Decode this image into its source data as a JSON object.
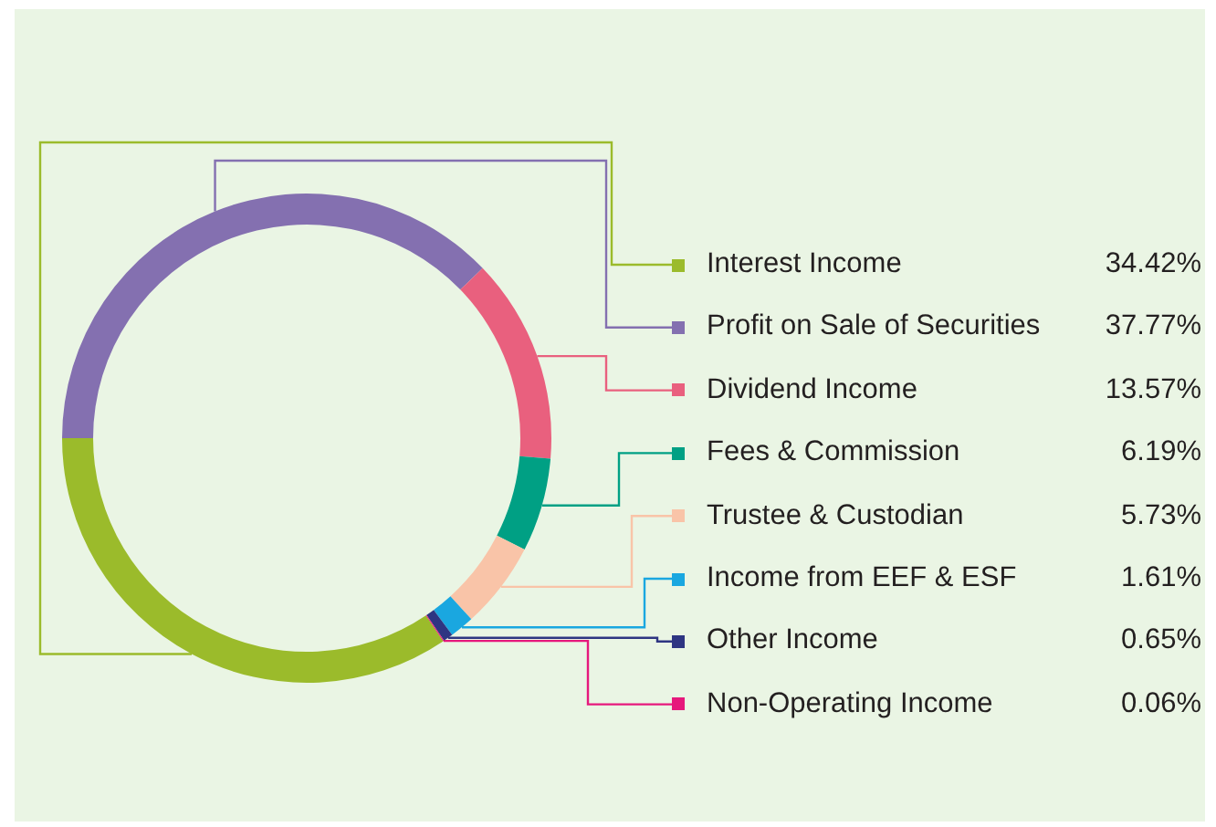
{
  "chart_data": {
    "type": "donut",
    "categories": [
      "Interest Income",
      "Profit on Sale of Securities",
      "Dividend Income",
      "Fees & Commission",
      "Trustee & Custodian",
      "Income from EEF & ESF",
      "Other Income",
      "Non-Operating Income"
    ],
    "values": [
      34.42,
      37.77,
      13.57,
      6.19,
      5.73,
      1.61,
      0.65,
      0.06
    ],
    "value_labels": [
      "34.42%",
      "37.77%",
      "13.57%",
      "6.19%",
      "5.73%",
      "1.61%",
      "0.65%",
      "0.06%"
    ],
    "colors": [
      "#9bbb2b",
      "#8470b0",
      "#e9607e",
      "#00a084",
      "#f9c4a8",
      "#1aa7e0",
      "#2e3582",
      "#e6187c"
    ],
    "legend": "right"
  }
}
